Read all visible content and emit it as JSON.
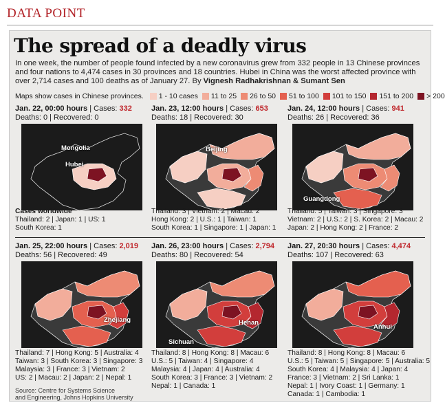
{
  "tag": "DATA POINT",
  "headline": "The spread of a deadly virus",
  "intro": "In one week, the number of people found infected by a new coronavirus grew from 332 people in 13 Chinese provinces and four nations to 4,474 cases in 30 provinces and 18 countries. Hubei in China was the worst affected province with over 2,714 cases and 100 deaths as of January 27. By",
  "byline": "Vignesh Radhakrishnan & Sumant Sen",
  "legend": {
    "label": "Maps show cases in Chinese provinces.",
    "items": [
      {
        "label": "1 - 10 cases",
        "color": "#f6cfc3"
      },
      {
        "label": "11 to 25",
        "color": "#f2ad9b"
      },
      {
        "label": "26 to 50",
        "color": "#ed8b74"
      },
      {
        "label": "51 to 100",
        "color": "#e4604f"
      },
      {
        "label": "101 to 150",
        "color": "#d23e3c"
      },
      {
        "label": "151 to 200",
        "color": "#b4272f"
      },
      {
        "label": "> 200",
        "color": "#7d1322"
      }
    ]
  },
  "cases_label": "Cases:",
  "panels": [
    {
      "time": "Jan. 22, 00:00 hours",
      "cases": "332",
      "deaths": "Deaths: 0 | Recovered: 0",
      "labels": [
        "Mongolia",
        "Hubei"
      ],
      "foot": [
        "Cases worldwide",
        "Thailand: 2 | Japan: 1 | US: 1",
        "South Korea: 1"
      ]
    },
    {
      "time": "Jan. 23, 12:00 hours",
      "cases": "653",
      "deaths": "Deaths: 18 | Recovered: 30",
      "labels": [
        "Beijing"
      ],
      "foot": [
        "Thailand: 3 | Vietnam: 2 | Macau: 2",
        "Hong Kong: 2 | U.S.: 1 | Taiwan: 1",
        "South Korea: 1 | Singapore: 1 | Japan: 1"
      ]
    },
    {
      "time": "Jan. 24, 12:00 hours",
      "cases": "941",
      "deaths": "Deaths: 26 | Recovered: 36",
      "labels": [
        "Guangdong"
      ],
      "foot": [
        "Thailand: 5 | Taiwan: 3 | Singapore: 3",
        "Vietnam: 2 | U.S.: 2 | S. Korea: 2 | Macau: 2",
        "Japan: 2 | Hong Kong: 2 | France: 2"
      ]
    },
    {
      "time": "Jan. 25, 22:00 hours",
      "cases": "2,019",
      "deaths": "Deaths: 56 | Recovered: 49",
      "labels": [
        "Zhejiang"
      ],
      "foot": [
        "Thailand: 7 | Hong Kong: 5 | Australia: 4",
        "Taiwan: 3 | South Korea: 3 | Singapore: 3",
        "Malaysia: 3 | France: 3 | Vietnam: 2",
        "US: 2 | Macau: 2 | Japan: 2 | Nepal: 1"
      ]
    },
    {
      "time": "Jan. 26, 23:00 hours",
      "cases": "2,794",
      "deaths": "Deaths: 80 | Recovered: 54",
      "labels": [
        "Henan",
        "Sichuan"
      ],
      "foot": [
        "Thailand: 8 | Hong Kong: 8 | Macau: 6",
        "U.S.: 5 | Taiwan: 4 | Singapore: 4",
        "Malaysia: 4 | Japan: 4 | Australia: 4",
        "South Korea: 3 | France: 3 | Vietnam: 2",
        "Nepal: 1 | Canada: 1"
      ]
    },
    {
      "time": "Jan. 27, 20:30 hours",
      "cases": "4,474",
      "deaths": "Deaths: 107 | Recovered: 63",
      "labels": [
        "Anhui"
      ],
      "foot": [
        "Thailand: 8 | Hong Kong: 8 | Macau: 6",
        "U.S.: 5 | Taiwan: 5 | Singapore: 5 | Australia: 5",
        "South Korea: 4 | Malaysia: 4 | Japan: 4",
        "France: 3 | Vietnam: 2 | Sri Lanka: 1",
        "Nepal: 1 | Ivory Coast: 1 | Germany: 1",
        "Canada: 1 | Cambodia: 1"
      ]
    }
  ],
  "source": [
    "Source: Centre for Systems Science",
    "and Engineering, Johns Hopkins University"
  ]
}
